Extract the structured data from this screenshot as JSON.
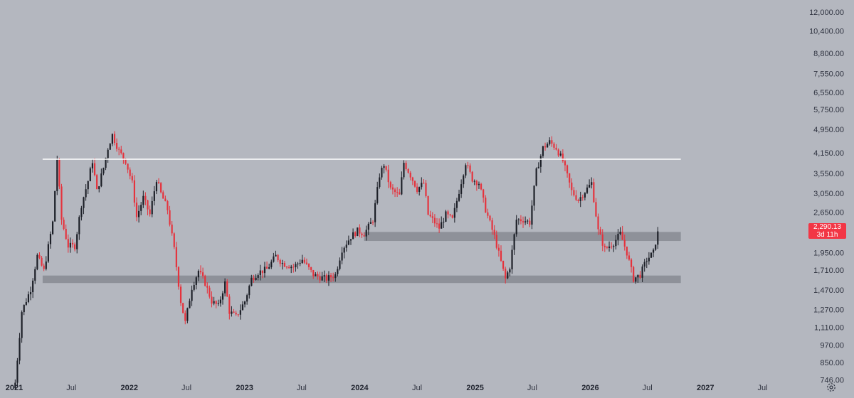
{
  "colors": {
    "background": "#b4b7bf",
    "up_candle": "#1c1f27",
    "down_candle": "#e5323c",
    "zone_fill": "#8e9199",
    "resistance_line": "#ffffff",
    "badge": "#f23645",
    "text": "#2f3340"
  },
  "icons": {
    "settings": "gear-icon"
  },
  "price_badge": {
    "price": "2,290.13",
    "countdown": "3d 11h"
  },
  "chart_data": {
    "type": "candlestick",
    "interval": "weekly",
    "y_scale": "log",
    "y_range": [
      720,
      12600
    ],
    "x_range": [
      "2021-01-01",
      "2027-11-01"
    ],
    "y_ticks": [
      "12,000.00",
      "10,400.00",
      "8,800.00",
      "7,550.00",
      "6,550.00",
      "5,750.00",
      "4,950.00",
      "4,150.00",
      "3,550.00",
      "3,050.00",
      "2,650.00",
      "1,950.00",
      "1,710.00",
      "1,470.00",
      "1,270.00",
      "1,110.00",
      "970.00",
      "850.00",
      "746.00"
    ],
    "x_ticks": [
      {
        "label": "2021",
        "date": "2021-01-01",
        "major": true
      },
      {
        "label": "Jul",
        "date": "2021-07-01",
        "major": false
      },
      {
        "label": "2022",
        "date": "2022-01-01",
        "major": true
      },
      {
        "label": "Jul",
        "date": "2022-07-01",
        "major": false
      },
      {
        "label": "2023",
        "date": "2023-01-01",
        "major": true
      },
      {
        "label": "Jul",
        "date": "2023-07-01",
        "major": false
      },
      {
        "label": "2024",
        "date": "2024-01-01",
        "major": true
      },
      {
        "label": "Jul",
        "date": "2024-07-01",
        "major": false
      },
      {
        "label": "2025",
        "date": "2025-01-01",
        "major": true
      },
      {
        "label": "Jul",
        "date": "2025-07-01",
        "major": false
      },
      {
        "label": "2026",
        "date": "2026-01-01",
        "major": true
      },
      {
        "label": "Jul",
        "date": "2026-07-01",
        "major": false
      },
      {
        "label": "2027",
        "date": "2027-01-01",
        "major": true
      },
      {
        "label": "Jul",
        "date": "2027-07-01",
        "major": false
      }
    ],
    "last_price": 2290.13,
    "resistance_line": {
      "price": 3950,
      "from": "2021-04-01",
      "to": "2026-10-15"
    },
    "zones": [
      {
        "low": 2130,
        "high": 2280,
        "from": "2024-01-15",
        "to": "2026-10-15"
      },
      {
        "low": 1550,
        "high": 1640,
        "from": "2021-04-01",
        "to": "2026-10-15"
      }
    ],
    "close_path": [
      [
        "2021-01-04",
        730
      ],
      [
        "2021-01-25",
        1250
      ],
      [
        "2021-02-22",
        1480
      ],
      [
        "2021-03-15",
        1900
      ],
      [
        "2021-04-05",
        1700
      ],
      [
        "2021-05-03",
        2450
      ],
      [
        "2021-05-17",
        3950
      ],
      [
        "2021-05-31",
        2500
      ],
      [
        "2021-06-21",
        2050
      ],
      [
        "2021-07-12",
        2050
      ],
      [
        "2021-08-02",
        2800
      ],
      [
        "2021-08-23",
        3350
      ],
      [
        "2021-09-06",
        3900
      ],
      [
        "2021-09-20",
        3100
      ],
      [
        "2021-10-11",
        3700
      ],
      [
        "2021-10-25",
        4300
      ],
      [
        "2021-11-08",
        4750
      ],
      [
        "2021-11-29",
        4200
      ],
      [
        "2021-12-20",
        3900
      ],
      [
        "2022-01-10",
        3300
      ],
      [
        "2022-01-24",
        2550
      ],
      [
        "2022-02-14",
        2950
      ],
      [
        "2022-03-07",
        2600
      ],
      [
        "2022-03-28",
        3400
      ],
      [
        "2022-04-11",
        3050
      ],
      [
        "2022-05-02",
        2700
      ],
      [
        "2022-05-23",
        2000
      ],
      [
        "2022-06-13",
        1350
      ],
      [
        "2022-06-27",
        1150
      ],
      [
        "2022-07-18",
        1500
      ],
      [
        "2022-08-08",
        1700
      ],
      [
        "2022-08-29",
        1550
      ],
      [
        "2022-09-19",
        1350
      ],
      [
        "2022-10-10",
        1300
      ],
      [
        "2022-10-31",
        1550
      ],
      [
        "2022-11-14",
        1250
      ],
      [
        "2022-12-05",
        1200
      ],
      [
        "2023-01-02",
        1350
      ],
      [
        "2023-01-23",
        1600
      ],
      [
        "2023-02-13",
        1680
      ],
      [
        "2023-03-13",
        1720
      ],
      [
        "2023-04-10",
        1900
      ],
      [
        "2023-05-01",
        1800
      ],
      [
        "2023-06-05",
        1750
      ],
      [
        "2023-07-03",
        1850
      ],
      [
        "2023-08-07",
        1650
      ],
      [
        "2023-08-28",
        1620
      ],
      [
        "2023-09-18",
        1600
      ],
      [
        "2023-10-16",
        1650
      ],
      [
        "2023-11-06",
        2000
      ],
      [
        "2023-12-04",
        2200
      ],
      [
        "2023-12-25",
        2300
      ],
      [
        "2024-01-15",
        2250
      ],
      [
        "2024-02-12",
        2500
      ],
      [
        "2024-03-04",
        3500
      ],
      [
        "2024-03-18",
        3800
      ],
      [
        "2024-04-08",
        3150
      ],
      [
        "2024-05-06",
        3000
      ],
      [
        "2024-05-20",
        3850
      ],
      [
        "2024-06-10",
        3500
      ],
      [
        "2024-07-01",
        3150
      ],
      [
        "2024-07-22",
        3300
      ],
      [
        "2024-08-05",
        2600
      ],
      [
        "2024-08-26",
        2450
      ],
      [
        "2024-09-09",
        2350
      ],
      [
        "2024-09-30",
        2600
      ],
      [
        "2024-10-21",
        2500
      ],
      [
        "2024-11-11",
        3100
      ],
      [
        "2024-12-02",
        3850
      ],
      [
        "2024-12-23",
        3400
      ],
      [
        "2025-01-13",
        3300
      ],
      [
        "2025-02-03",
        2700
      ],
      [
        "2025-03-03",
        2200
      ],
      [
        "2025-04-07",
        1600
      ],
      [
        "2025-04-21",
        1750
      ],
      [
        "2025-05-12",
        2500
      ],
      [
        "2025-06-02",
        2500
      ],
      [
        "2025-06-23",
        2450
      ],
      [
        "2025-07-14",
        3600
      ],
      [
        "2025-08-04",
        4300
      ],
      [
        "2025-08-25",
        4500
      ],
      [
        "2025-09-15",
        4300
      ],
      [
        "2025-10-06",
        3900
      ],
      [
        "2025-11-03",
        3100
      ],
      [
        "2025-11-24",
        2900
      ],
      [
        "2025-12-15",
        3100
      ],
      [
        "2026-01-05",
        3300
      ],
      [
        "2026-01-26",
        2300
      ],
      [
        "2026-02-16",
        2000
      ],
      [
        "2026-03-16",
        2100
      ],
      [
        "2026-04-06",
        2250
      ],
      [
        "2026-04-27",
        1950
      ],
      [
        "2026-05-18",
        1600
      ],
      [
        "2026-06-08",
        1650
      ],
      [
        "2026-06-29",
        1850
      ],
      [
        "2026-07-20",
        1950
      ],
      [
        "2026-08-03",
        2290
      ]
    ]
  }
}
